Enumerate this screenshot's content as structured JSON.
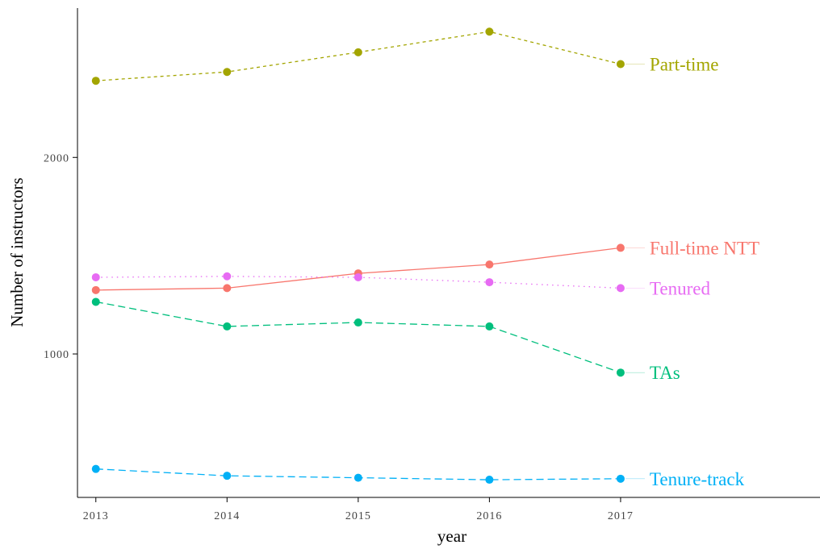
{
  "chart_data": {
    "type": "line",
    "xlabel": "year",
    "ylabel": "Number of instructors",
    "x": [
      2013,
      2014,
      2015,
      2016,
      2017
    ],
    "x_tick_labels": [
      "2013",
      "2014",
      "2015",
      "2016",
      "2017"
    ],
    "y_ticks": [
      1000,
      2000
    ],
    "y_tick_labels": [
      "1000",
      "2000"
    ],
    "xlim": [
      2012.86,
      2018.52
    ],
    "ylim": [
      270,
      2760
    ],
    "grid": false,
    "legend": "direct labels at line ends",
    "series": [
      {
        "name": "Part-time",
        "color": "#A3A500",
        "dash": "dashed",
        "values": [
          2390,
          2435,
          2535,
          2640,
          2475
        ]
      },
      {
        "name": "Full-time NTT",
        "color": "#F8766D",
        "dash": "solid",
        "values": [
          1325,
          1335,
          1410,
          1455,
          1540
        ]
      },
      {
        "name": "Tenured",
        "color": "#E76BF3",
        "dash": "dotted",
        "values": [
          1390,
          1395,
          1390,
          1365,
          1335
        ]
      },
      {
        "name": "TAs",
        "color": "#00BF7D",
        "dash": "longdash",
        "values": [
          1265,
          1140,
          1160,
          1140,
          905
        ]
      },
      {
        "name": "Tenure-track",
        "color": "#00B0F6",
        "dash": "longdash",
        "values": [
          415,
          380,
          370,
          360,
          365
        ]
      }
    ]
  }
}
